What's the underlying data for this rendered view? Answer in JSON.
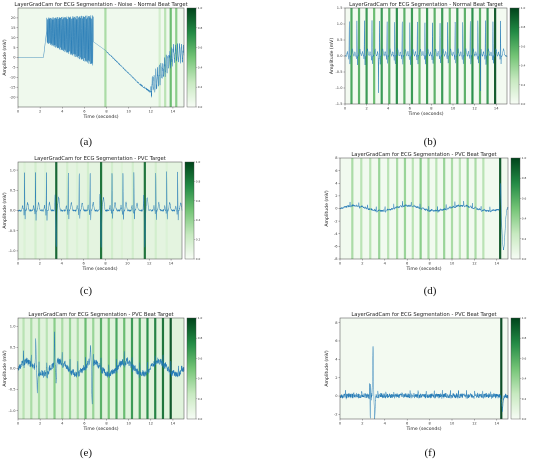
{
  "colors": {
    "line": "#1f77b4",
    "cam_low": "#f7fcf5",
    "cam_high": "#00441b",
    "frame": "#444444",
    "background": "#ffffff"
  },
  "chart_data": [
    {
      "panel": "(a)",
      "type": "line",
      "title": "LayerGradCam for ECG Segmentation - Noise - Normal Beat Target",
      "xlabel": "Time (seconds)",
      "ylabel": "Amplitude (mV)",
      "xlim": [
        0,
        15
      ],
      "ylim": [
        -25,
        25
      ],
      "xticks": [
        0,
        2,
        4,
        6,
        8,
        10,
        12,
        14
      ],
      "yticks": [
        -20,
        -15,
        -10,
        -5,
        0,
        5,
        10,
        15,
        20
      ],
      "signal": "noise",
      "background_level": 0.04,
      "attribution_bands": [
        [
          7.9,
          0.35
        ],
        [
          12.8,
          0.2
        ],
        [
          13.3,
          0.3
        ],
        [
          13.8,
          0.55
        ],
        [
          14.3,
          0.45
        ]
      ],
      "colorbar_ticks": [
        "0.0",
        "0.2",
        "0.4",
        "0.6",
        "0.8",
        "1.0"
      ],
      "grid": false
    },
    {
      "panel": "(b)",
      "type": "line",
      "title": "LayerGradCam for ECG Segmentation - Normal Beat Target",
      "xlabel": "Time (seconds)",
      "ylabel": "Amplitude (mV)",
      "xlim": [
        0,
        15
      ],
      "ylim": [
        -1.5,
        1.5
      ],
      "xticks": [
        0,
        2,
        4,
        6,
        8,
        10,
        12,
        14
      ],
      "yticks": [
        -1.5,
        -1.0,
        -0.5,
        0.0,
        0.5,
        1.0,
        1.5
      ],
      "signal": "normal",
      "background_level": 0.02,
      "attribution_bands": [
        [
          0.6,
          0.65
        ],
        [
          1.3,
          0.6
        ],
        [
          2.0,
          0.7
        ],
        [
          2.7,
          0.55
        ],
        [
          3.4,
          0.7
        ],
        [
          4.1,
          0.6
        ],
        [
          4.8,
          0.75
        ],
        [
          5.5,
          0.6
        ],
        [
          6.2,
          0.7
        ],
        [
          6.9,
          0.55
        ],
        [
          7.6,
          0.7
        ],
        [
          8.3,
          0.6
        ],
        [
          9.0,
          0.7
        ],
        [
          9.7,
          0.55
        ],
        [
          10.4,
          0.7
        ],
        [
          11.1,
          0.6
        ],
        [
          11.8,
          0.75
        ],
        [
          12.5,
          0.6
        ],
        [
          13.2,
          0.7
        ],
        [
          13.9,
          0.95
        ]
      ],
      "colorbar_ticks": [
        "0.0",
        "0.2",
        "0.4",
        "0.6",
        "0.8",
        "1.0"
      ],
      "grid": false
    },
    {
      "panel": "(c)",
      "type": "line",
      "title": "LayerGradCam for ECG Segmentation - PVC Target",
      "xlabel": "Time (seconds)",
      "ylabel": "Amplitude (mV)",
      "xlim": [
        0,
        15
      ],
      "ylim": [
        -1.2,
        1.2
      ],
      "xticks": [
        0,
        2,
        4,
        6,
        8,
        10,
        12,
        14
      ],
      "yticks": [
        -1.0,
        -0.5,
        0.0,
        0.5,
        1.0
      ],
      "signal": "pvc_c",
      "background_level": 0.1,
      "attribution_bands": [
        [
          0.6,
          0.15
        ],
        [
          1.6,
          0.2
        ],
        [
          2.5,
          0.15
        ],
        [
          3.5,
          0.9
        ],
        [
          4.5,
          0.2
        ],
        [
          5.4,
          0.15
        ],
        [
          6.4,
          0.2
        ],
        [
          7.6,
          0.85
        ],
        [
          8.6,
          0.2
        ],
        [
          9.5,
          0.15
        ],
        [
          10.5,
          0.2
        ],
        [
          11.6,
          0.85
        ],
        [
          12.6,
          0.2
        ],
        [
          13.6,
          0.15
        ]
      ],
      "colorbar_ticks": [
        "0.0",
        "0.2",
        "0.4",
        "0.6",
        "0.8",
        "1.0"
      ],
      "grid": false
    },
    {
      "panel": "(d)",
      "type": "line",
      "title": "LayerGradCam for ECG Segmentation - PVC Beat Target",
      "xlabel": "Time (seconds)",
      "ylabel": "Amplitude (mV)",
      "xlim": [
        0,
        15
      ],
      "ylim": [
        -8,
        8
      ],
      "xticks": [
        0,
        2,
        4,
        6,
        8,
        10,
        12,
        14
      ],
      "yticks": [
        -8,
        -6,
        -4,
        -2,
        0,
        2,
        4,
        6,
        8
      ],
      "signal": "pvc_d",
      "background_level": 0.03,
      "attribution_bands": [
        [
          1.1,
          0.35
        ],
        [
          1.9,
          0.3
        ],
        [
          2.7,
          0.3
        ],
        [
          3.5,
          0.4
        ],
        [
          4.3,
          0.3
        ],
        [
          5.1,
          0.35
        ],
        [
          5.8,
          0.4
        ],
        [
          6.5,
          0.3
        ],
        [
          7.2,
          0.45
        ],
        [
          7.9,
          0.35
        ],
        [
          8.6,
          0.3
        ],
        [
          9.3,
          0.4
        ],
        [
          10.0,
          0.35
        ],
        [
          10.7,
          0.3
        ],
        [
          11.4,
          0.4
        ],
        [
          12.1,
          0.35
        ],
        [
          12.8,
          0.3
        ],
        [
          14.3,
          0.95
        ]
      ],
      "colorbar_ticks": [
        "0.0",
        "0.2",
        "0.4",
        "0.6",
        "0.8",
        "1.0"
      ],
      "grid": false
    },
    {
      "panel": "(e)",
      "type": "line",
      "title": "LayerGradCam for ECG Segmentation - PVC Beat Target",
      "xlabel": "Time (seconds)",
      "ylabel": "Amplitude (mV)",
      "xlim": [
        0,
        15
      ],
      "ylim": [
        -1.2,
        1.2
      ],
      "xticks": [
        0,
        2,
        4,
        6,
        8,
        10,
        12,
        14
      ],
      "yticks": [
        -1.0,
        -0.5,
        0.0,
        0.5,
        1.0
      ],
      "signal": "pvc_e",
      "background_level": 0.12,
      "attribution_bands": [
        [
          0.5,
          0.3
        ],
        [
          1.2,
          0.35
        ],
        [
          1.9,
          0.35
        ],
        [
          2.6,
          0.3
        ],
        [
          3.3,
          0.45
        ],
        [
          4.0,
          0.35
        ],
        [
          4.7,
          0.4
        ],
        [
          5.4,
          0.35
        ],
        [
          6.1,
          0.55
        ],
        [
          6.8,
          0.4
        ],
        [
          7.5,
          0.6
        ],
        [
          8.2,
          0.5
        ],
        [
          8.9,
          0.65
        ],
        [
          9.6,
          0.55
        ],
        [
          10.3,
          0.7
        ],
        [
          11.0,
          0.65
        ],
        [
          11.7,
          0.75
        ],
        [
          12.4,
          0.8
        ],
        [
          13.1,
          0.85
        ],
        [
          13.8,
          0.95
        ]
      ],
      "colorbar_ticks": [
        "0.0",
        "0.2",
        "0.4",
        "0.6",
        "0.8",
        "1.0"
      ],
      "grid": false
    },
    {
      "panel": "(f)",
      "type": "line",
      "title": "LayerGradCam for ECG Segmentation - PVC Beat Target",
      "xlabel": "Time (seconds)",
      "ylabel": "Amplitude (mV)",
      "xlim": [
        0,
        15
      ],
      "ylim": [
        -2.5,
        8.5
      ],
      "xticks": [
        0,
        2,
        4,
        6,
        8,
        10,
        12,
        14
      ],
      "yticks": [
        -2,
        0,
        2,
        4,
        6,
        8
      ],
      "signal": "pvc_f",
      "background_level": 0.02,
      "attribution_bands": [
        [
          14.4,
          1.0
        ]
      ],
      "colorbar_ticks": [
        "0.0",
        "0.2",
        "0.4",
        "0.6",
        "0.8",
        "1.0"
      ],
      "grid": false
    }
  ]
}
